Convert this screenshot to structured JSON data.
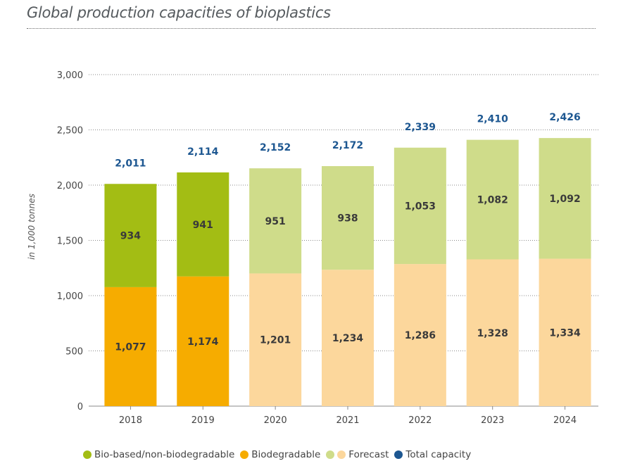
{
  "page": {
    "title": "Global production capacities of bioplastics"
  },
  "colors": {
    "bio_based": "#a3bd14",
    "biodegradable": "#f6ac00",
    "forecast_bio_based": "#cfdc8a",
    "forecast_biodegradable": "#fcd79c",
    "total": "#1d5791"
  },
  "legend": {
    "items": [
      {
        "label": "Bio-based/non-biodegradable",
        "icon": "green-dot",
        "colors": [
          "#a3bd14"
        ]
      },
      {
        "label": "Biodegradable",
        "icon": "orange-dot",
        "colors": [
          "#f6ac00"
        ]
      },
      {
        "label": "Forecast",
        "icon": "forecast-dots",
        "colors": [
          "#cfdc8a",
          "#fcd79c"
        ]
      },
      {
        "label": "Total capacity",
        "icon": "blue-dot",
        "colors": [
          "#1d5791"
        ]
      }
    ]
  },
  "chart_data": {
    "type": "bar",
    "stacked": true,
    "title": "Global production capacities of bioplastics",
    "ylabel": "in 1,000 tonnes",
    "xlabel": "",
    "ylim": [
      0,
      3000
    ],
    "yticks": [
      0,
      500,
      1000,
      1500,
      2000,
      2500,
      3000
    ],
    "ytick_labels": [
      "0",
      "500",
      "1,000",
      "1,500",
      "2,000",
      "2,500",
      "3,000"
    ],
    "grid": true,
    "legend_position": "bottom",
    "categories": [
      "2018",
      "2019",
      "2020",
      "2021",
      "2022",
      "2023",
      "2024"
    ],
    "forecast_from_index": 2,
    "series": [
      {
        "name": "Biodegradable",
        "values": [
          1077,
          1174,
          1201,
          1234,
          1286,
          1328,
          1334
        ],
        "labels": [
          "1,077",
          "1,174",
          "1,201",
          "1,234",
          "1,286",
          "1,328",
          "1,334"
        ]
      },
      {
        "name": "Bio-based/non-biodegradable",
        "values": [
          934,
          941,
          951,
          938,
          1053,
          1082,
          1092
        ],
        "labels": [
          "934",
          "941",
          "951",
          "938",
          "1,053",
          "1,082",
          "1,092"
        ]
      }
    ],
    "totals": {
      "name": "Total capacity",
      "values": [
        2011,
        2114,
        2152,
        2172,
        2339,
        2410,
        2426
      ],
      "labels": [
        "2,011",
        "2,114",
        "2,152",
        "2,172",
        "2,339",
        "2,410",
        "2,426"
      ]
    }
  }
}
